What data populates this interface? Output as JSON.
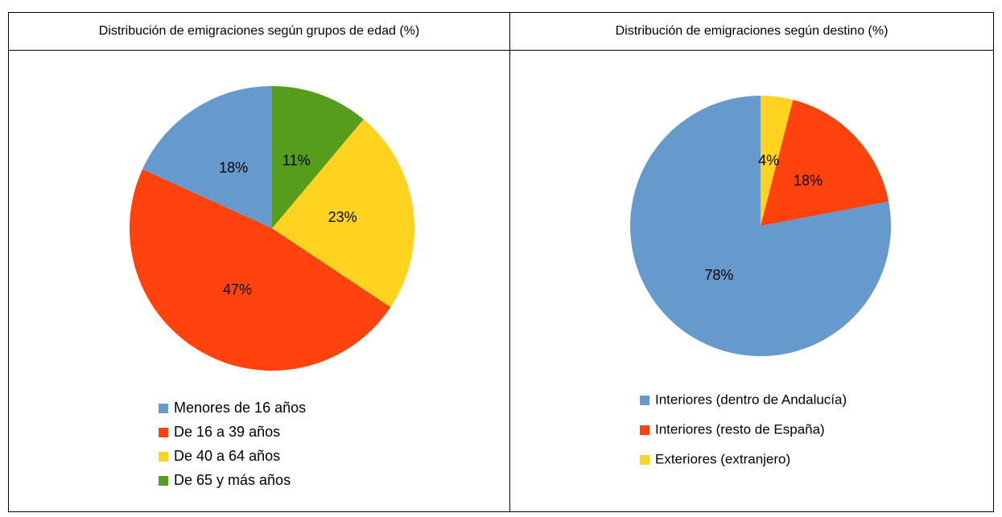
{
  "chart_data": [
    {
      "type": "pie",
      "title": "Distribución de emigraciones según grupos de edad (%)",
      "categories": [
        "Menores de 16 años",
        "De 16 a 39 años",
        "De 40 a 64 años",
        "De 65 y más años"
      ],
      "values": [
        18,
        47,
        23,
        11
      ],
      "value_labels": [
        "18%",
        "47%",
        "23%",
        "11%"
      ],
      "colors": [
        "#6699cc",
        "#ff420e",
        "#ffd320",
        "#579d1c"
      ],
      "legend": "bottom"
    },
    {
      "type": "pie",
      "title": "Distribución de emigraciones según destino (%)",
      "categories": [
        "Interiores (dentro de Andalucía)",
        "Interiores (resto de España)",
        "Exteriores (extranjero)"
      ],
      "values": [
        78,
        18,
        4
      ],
      "value_labels": [
        "78%",
        "18%",
        "4%"
      ],
      "colors": [
        "#6699cc",
        "#ff420e",
        "#ffd320"
      ],
      "legend": "bottom"
    }
  ]
}
